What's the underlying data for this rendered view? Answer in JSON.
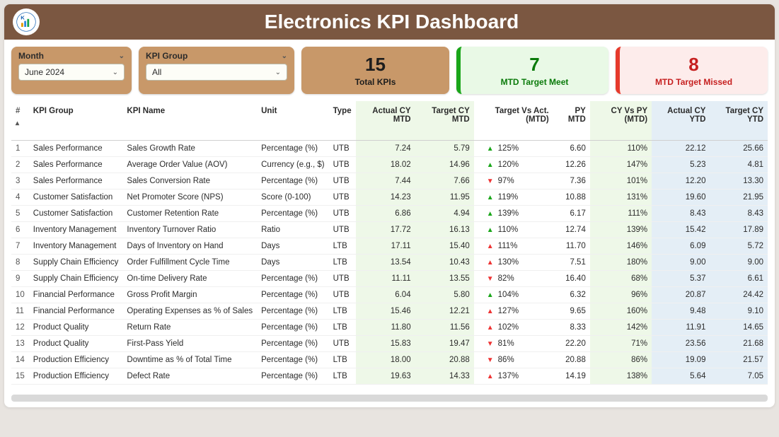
{
  "title": "Electronics KPI Dashboard",
  "filters": {
    "month": {
      "label": "Month",
      "value": "June 2024"
    },
    "group": {
      "label": "KPI Group",
      "value": "All"
    }
  },
  "kpi_cards": {
    "total": {
      "value": "15",
      "label": "Total KPIs"
    },
    "meet": {
      "value": "7",
      "label": "MTD Target Meet"
    },
    "miss": {
      "value": "8",
      "label": "MTD Target Missed"
    }
  },
  "columns": {
    "idx": "#",
    "group": "KPI Group",
    "name": "KPI Name",
    "unit": "Unit",
    "type": "Type",
    "act_mtd": "Actual CY MTD",
    "tgt_mtd": "Target CY MTD",
    "tva": "Target Vs Act. (MTD)",
    "py": "PY MTD",
    "cyvpy": "CY Vs PY (MTD)",
    "act_ytd": "Actual CY YTD",
    "tgt_ytd": "Target CY YTD"
  },
  "colors": {
    "header_bg": "#7b5741",
    "filter_bg": "#c89869",
    "meet_accent": "#1aa61a",
    "miss_accent": "#e63a2c",
    "mtd_col_bg": "#eef8e8",
    "ytd_col_bg": "#e4eef6"
  },
  "rows": [
    {
      "idx": "1",
      "group": "Sales Performance",
      "name": "Sales Growth Rate",
      "unit": "Percentage (%)",
      "type": "UTB",
      "act_mtd": "7.24",
      "tgt_mtd": "5.79",
      "tva_dir": "up",
      "tva": "125%",
      "py": "6.60",
      "cyvpy": "110%",
      "act_ytd": "22.12",
      "tgt_ytd": "25.66"
    },
    {
      "idx": "2",
      "group": "Sales Performance",
      "name": "Average Order Value (AOV)",
      "unit": "Currency (e.g., $)",
      "type": "UTB",
      "act_mtd": "18.02",
      "tgt_mtd": "14.96",
      "tva_dir": "up",
      "tva": "120%",
      "py": "12.26",
      "cyvpy": "147%",
      "act_ytd": "5.23",
      "tgt_ytd": "4.81"
    },
    {
      "idx": "3",
      "group": "Sales Performance",
      "name": "Sales Conversion Rate",
      "unit": "Percentage (%)",
      "type": "UTB",
      "act_mtd": "7.44",
      "tgt_mtd": "7.66",
      "tva_dir": "down",
      "tva": "97%",
      "py": "7.36",
      "cyvpy": "101%",
      "act_ytd": "12.20",
      "tgt_ytd": "13.30"
    },
    {
      "idx": "4",
      "group": "Customer Satisfaction",
      "name": "Net Promoter Score (NPS)",
      "unit": "Score (0-100)",
      "type": "UTB",
      "act_mtd": "14.23",
      "tgt_mtd": "11.95",
      "tva_dir": "up",
      "tva": "119%",
      "py": "10.88",
      "cyvpy": "131%",
      "act_ytd": "19.60",
      "tgt_ytd": "21.95"
    },
    {
      "idx": "5",
      "group": "Customer Satisfaction",
      "name": "Customer Retention Rate",
      "unit": "Percentage (%)",
      "type": "UTB",
      "act_mtd": "6.86",
      "tgt_mtd": "4.94",
      "tva_dir": "up",
      "tva": "139%",
      "py": "6.17",
      "cyvpy": "111%",
      "act_ytd": "8.43",
      "tgt_ytd": "8.43"
    },
    {
      "idx": "6",
      "group": "Inventory Management",
      "name": "Inventory Turnover Ratio",
      "unit": "Ratio",
      "type": "UTB",
      "act_mtd": "17.72",
      "tgt_mtd": "16.13",
      "tva_dir": "up",
      "tva": "110%",
      "py": "12.74",
      "cyvpy": "139%",
      "act_ytd": "15.42",
      "tgt_ytd": "17.89"
    },
    {
      "idx": "7",
      "group": "Inventory Management",
      "name": "Days of Inventory on Hand",
      "unit": "Days",
      "type": "LTB",
      "act_mtd": "17.11",
      "tgt_mtd": "15.40",
      "tva_dir": "upred",
      "tva": "111%",
      "py": "11.70",
      "cyvpy": "146%",
      "act_ytd": "6.09",
      "tgt_ytd": "5.72"
    },
    {
      "idx": "8",
      "group": "Supply Chain Efficiency",
      "name": "Order Fulfillment Cycle Time",
      "unit": "Days",
      "type": "LTB",
      "act_mtd": "13.54",
      "tgt_mtd": "10.43",
      "tva_dir": "upred",
      "tva": "130%",
      "py": "7.51",
      "cyvpy": "180%",
      "act_ytd": "9.00",
      "tgt_ytd": "9.00"
    },
    {
      "idx": "9",
      "group": "Supply Chain Efficiency",
      "name": "On-time Delivery Rate",
      "unit": "Percentage (%)",
      "type": "UTB",
      "act_mtd": "11.11",
      "tgt_mtd": "13.55",
      "tva_dir": "down",
      "tva": "82%",
      "py": "16.40",
      "cyvpy": "68%",
      "act_ytd": "5.37",
      "tgt_ytd": "6.61"
    },
    {
      "idx": "10",
      "group": "Financial Performance",
      "name": "Gross Profit Margin",
      "unit": "Percentage (%)",
      "type": "UTB",
      "act_mtd": "6.04",
      "tgt_mtd": "5.80",
      "tva_dir": "up",
      "tva": "104%",
      "py": "6.32",
      "cyvpy": "96%",
      "act_ytd": "20.87",
      "tgt_ytd": "24.42"
    },
    {
      "idx": "11",
      "group": "Financial Performance",
      "name": "Operating Expenses as % of Sales",
      "unit": "Percentage (%)",
      "type": "LTB",
      "act_mtd": "15.46",
      "tgt_mtd": "12.21",
      "tva_dir": "upred",
      "tva": "127%",
      "py": "9.65",
      "cyvpy": "160%",
      "act_ytd": "9.48",
      "tgt_ytd": "9.10"
    },
    {
      "idx": "12",
      "group": "Product Quality",
      "name": "Return Rate",
      "unit": "Percentage (%)",
      "type": "LTB",
      "act_mtd": "11.80",
      "tgt_mtd": "11.56",
      "tva_dir": "upred",
      "tva": "102%",
      "py": "8.33",
      "cyvpy": "142%",
      "act_ytd": "11.91",
      "tgt_ytd": "14.65"
    },
    {
      "idx": "13",
      "group": "Product Quality",
      "name": "First-Pass Yield",
      "unit": "Percentage (%)",
      "type": "UTB",
      "act_mtd": "15.83",
      "tgt_mtd": "19.47",
      "tva_dir": "down",
      "tva": "81%",
      "py": "22.20",
      "cyvpy": "71%",
      "act_ytd": "23.56",
      "tgt_ytd": "21.68"
    },
    {
      "idx": "14",
      "group": "Production Efficiency",
      "name": "Downtime as % of Total Time",
      "unit": "Percentage (%)",
      "type": "LTB",
      "act_mtd": "18.00",
      "tgt_mtd": "20.88",
      "tva_dir": "down",
      "tva": "86%",
      "py": "20.88",
      "cyvpy": "86%",
      "act_ytd": "19.09",
      "tgt_ytd": "21.57"
    },
    {
      "idx": "15",
      "group": "Production Efficiency",
      "name": "Defect Rate",
      "unit": "Percentage (%)",
      "type": "LTB",
      "act_mtd": "19.63",
      "tgt_mtd": "14.33",
      "tva_dir": "upred",
      "tva": "137%",
      "py": "14.19",
      "cyvpy": "138%",
      "act_ytd": "5.64",
      "tgt_ytd": "7.05"
    }
  ]
}
